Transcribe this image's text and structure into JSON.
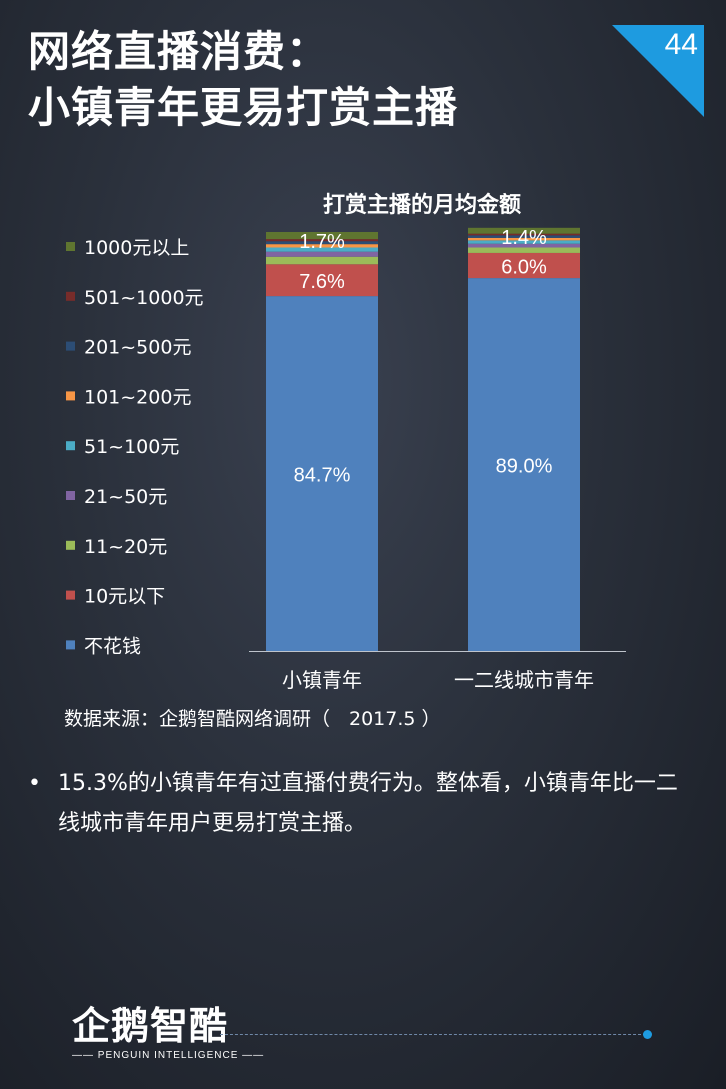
{
  "slide": {
    "title_line1": "网络直播消费：",
    "title_line2": "小镇青年更易打赏主播",
    "page_number": "44",
    "source": "数据来源：企鹅智酷网络调研（　2017.5 ）",
    "bullet_symbol": "•",
    "bullet_text": "15.3%的小镇青年有过直播付费行为。整体看，小镇青年比一二线城市青年用户更易打赏主播。",
    "logo_text": "企鹅智酷",
    "logo_subtext": "—— PENGUIN INTELLIGENCE ——",
    "accent_color": "#1e9be0"
  },
  "chart_data": {
    "type": "bar",
    "stacked": true,
    "title": "打赏主播的月均金额",
    "categories": [
      "小镇青年",
      "一二线城市青年"
    ],
    "ylim": [
      0,
      100
    ],
    "legend_position": "left",
    "series": [
      {
        "name": "不花钱",
        "color": "#4f81bd",
        "values": [
          84.7,
          89.0
        ],
        "labels": [
          "84.7%",
          "89.0%"
        ]
      },
      {
        "name": "10元以下",
        "color": "#c0504d",
        "values": [
          7.6,
          6.0
        ],
        "labels": [
          "7.6%",
          "6.0%"
        ]
      },
      {
        "name": "11~20元",
        "color": "#9bbb59",
        "values": [
          1.8,
          1.3
        ],
        "labels": [
          "",
          ""
        ]
      },
      {
        "name": "21~50元",
        "color": "#8064a2",
        "values": [
          1.2,
          0.9
        ],
        "labels": [
          "",
          ""
        ]
      },
      {
        "name": "51~100元",
        "color": "#4bacc6",
        "values": [
          1.0,
          0.8
        ],
        "labels": [
          "",
          ""
        ]
      },
      {
        "name": "101~200元",
        "color": "#f79646",
        "values": [
          0.8,
          0.6
        ],
        "labels": [
          "",
          ""
        ]
      },
      {
        "name": "201~500元",
        "color": "#2c4d75",
        "values": [
          0.7,
          0.6
        ],
        "labels": [
          "",
          ""
        ]
      },
      {
        "name": "501~1000元",
        "color": "#772c2a",
        "values": [
          0.5,
          0.4
        ],
        "labels": [
          "",
          ""
        ]
      },
      {
        "name": "1000元以上",
        "color": "#5f7530",
        "values": [
          1.7,
          1.4
        ],
        "labels": [
          "1.7%",
          "1.4%"
        ]
      }
    ]
  }
}
